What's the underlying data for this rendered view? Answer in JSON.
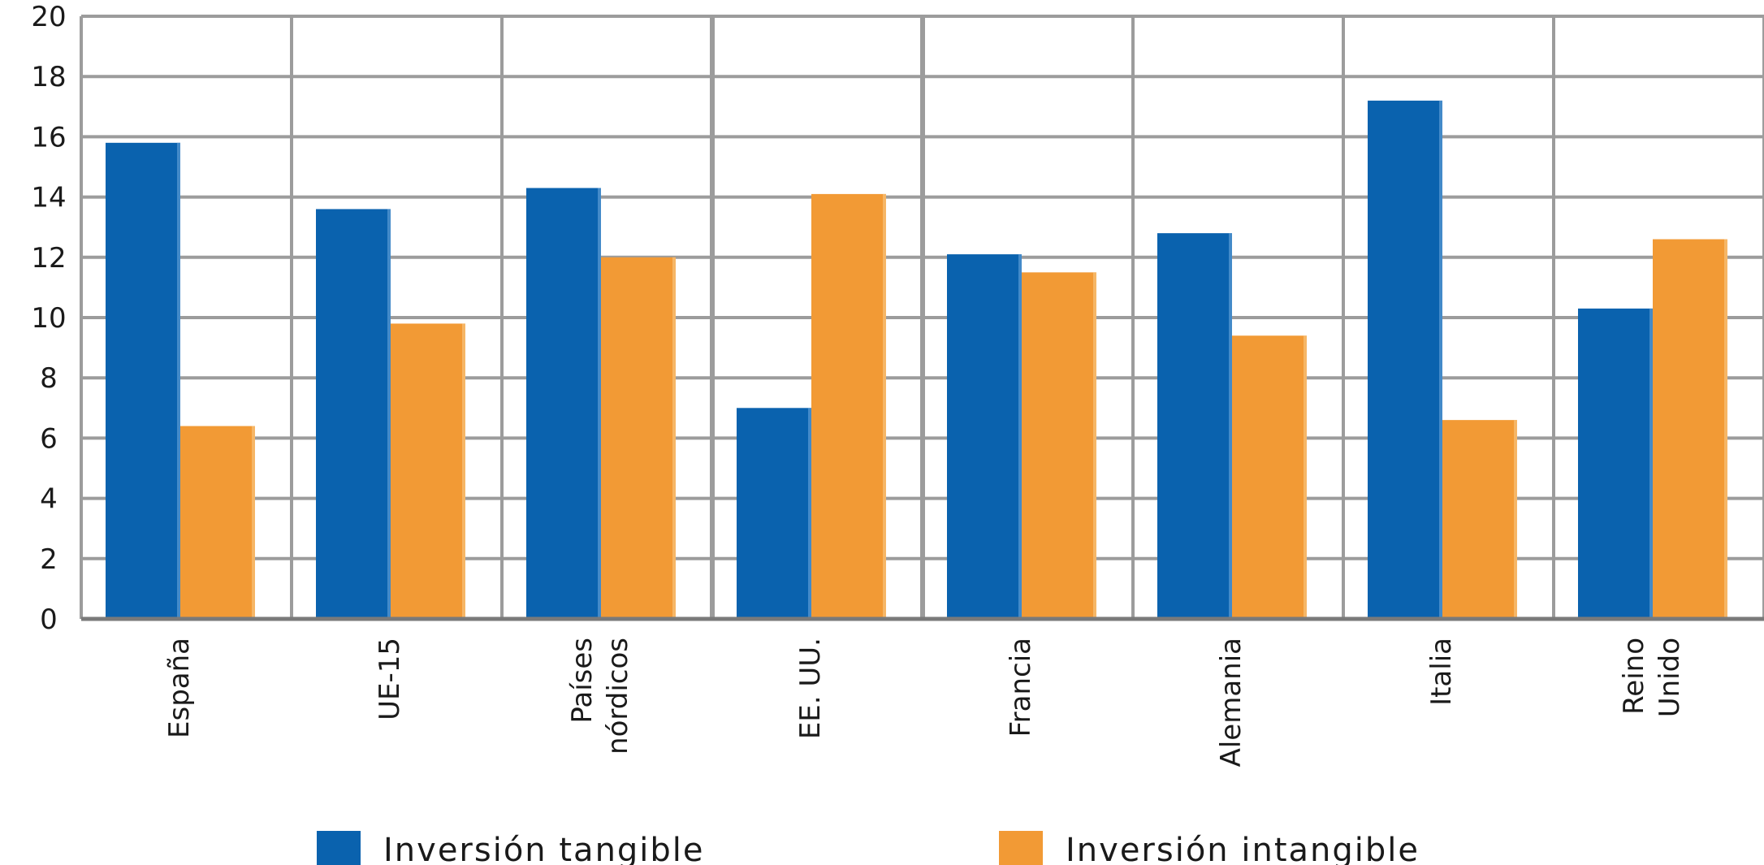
{
  "chart_data": {
    "type": "bar",
    "title": "",
    "xlabel": "",
    "ylabel": "",
    "ylim": [
      0,
      20
    ],
    "yticks": [
      0,
      2,
      4,
      6,
      8,
      10,
      12,
      14,
      16,
      18,
      20
    ],
    "grid": true,
    "legend_position": "bottom",
    "categories": [
      [
        "España"
      ],
      [
        "UE-15"
      ],
      [
        "Países",
        "nórdicos"
      ],
      [
        "EE. UU."
      ],
      [
        "Francia"
      ],
      [
        "Alemania"
      ],
      [
        "Italia"
      ],
      [
        "Reino",
        "Unido"
      ]
    ],
    "series": [
      {
        "name": "Inversión tangible",
        "color": "#0a62ae",
        "values": [
          15.8,
          13.6,
          14.3,
          7.0,
          12.1,
          12.8,
          17.2,
          10.3
        ]
      },
      {
        "name": "Inversión intangible",
        "color": "#f29a35",
        "values": [
          6.4,
          9.8,
          12.0,
          14.1,
          11.5,
          9.4,
          6.6,
          12.6
        ]
      }
    ]
  }
}
